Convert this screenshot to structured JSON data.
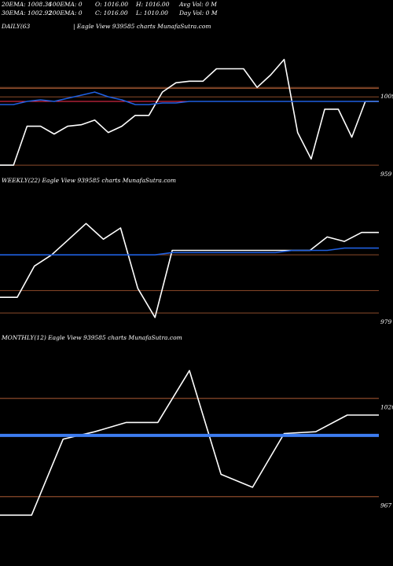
{
  "header": {
    "row1": [
      "20EMA: 1008.36",
      "100EMA: 0",
      "O: 1016.00",
      "H: 1016.00",
      "Avg Vol: 0  M"
    ],
    "row2": [
      "30EMA: 1002.92",
      "200EMA: 0",
      "C: 1016.00",
      "L: 1010.00",
      "Day Vol: 0  M"
    ]
  },
  "colors": {
    "background": "#000000",
    "price_line": "#ffffff",
    "ema_line": "#1f5fe0",
    "level_line": "#8b4a2a",
    "red_line": "#ff3050"
  },
  "chart_data": [
    {
      "type": "line",
      "title": "DAILY(63",
      "subtitle": "| Eagle  View  939585 charts MunafaSutra.com",
      "y_ticks": [
        {
          "value": 1009,
          "label": "1009"
        },
        {
          "value": 959,
          "label": "959"
        }
      ],
      "ylim": [
        955,
        1045
      ],
      "series": [
        {
          "role": "price",
          "values": [
            959,
            959,
            984,
            984,
            979,
            984,
            985,
            988,
            980,
            984,
            991,
            991,
            1006,
            1012,
            1013,
            1013,
            1021,
            1021,
            1021,
            1009,
            1017,
            1027,
            980,
            963,
            995,
            995,
            977,
            1000,
            1000
          ]
        },
        {
          "role": "ema",
          "values": [
            998,
            998,
            1000,
            1001,
            1000,
            1002,
            1004,
            1006,
            1003,
            1001,
            998,
            998,
            999,
            999,
            1000,
            1000,
            1000,
            1000,
            1000,
            1000,
            1000,
            1000,
            1000,
            1000,
            1000,
            1000,
            1000,
            1000,
            1000
          ]
        }
      ],
      "levels": [
        1008.36,
        1002.92,
        1000
      ]
    },
    {
      "type": "line",
      "title": "WEEKLY(22) Eagle  View  939585 charts MunafaSutra.com",
      "y_ticks": [
        {
          "value": 979,
          "label": "979"
        }
      ],
      "ylim": [
        972,
        1036
      ],
      "series": [
        {
          "role": "price",
          "values": [
            986,
            986,
            1000,
            1005,
            1012,
            1019,
            1012,
            1017,
            990,
            977,
            1007,
            1007,
            1007,
            1007,
            1007,
            1007,
            1007,
            1007,
            1007,
            1013,
            1011,
            1015,
            1015
          ]
        },
        {
          "role": "ema",
          "values": [
            1005,
            1005,
            1005,
            1005,
            1005,
            1005,
            1005,
            1005,
            1005,
            1005,
            1006,
            1006,
            1006,
            1006,
            1006,
            1006,
            1006,
            1007,
            1007,
            1007,
            1008,
            1008,
            1008
          ]
        }
      ],
      "levels": [
        1005,
        989
      ]
    },
    {
      "type": "line",
      "title": "MONTHLY(12) Eagle  View  939585 charts MunafaSutra.com",
      "y_ticks": [
        {
          "value": 1020,
          "label": "1020"
        },
        {
          "value": 967,
          "label": "967"
        }
      ],
      "ylim": [
        955,
        1050
      ],
      "series": [
        {
          "role": "price",
          "values": [
            957,
            957,
            998,
            1002,
            1007,
            1007,
            1035,
            979,
            972,
            1001,
            1002,
            1011,
            1011
          ]
        },
        {
          "role": "ema",
          "values": [
            1000,
            1000,
            1000,
            1000,
            1000,
            1000,
            1000,
            1000,
            1000,
            1000,
            1000,
            1000,
            1000
          ]
        }
      ],
      "levels": [
        1020,
        967
      ]
    }
  ]
}
